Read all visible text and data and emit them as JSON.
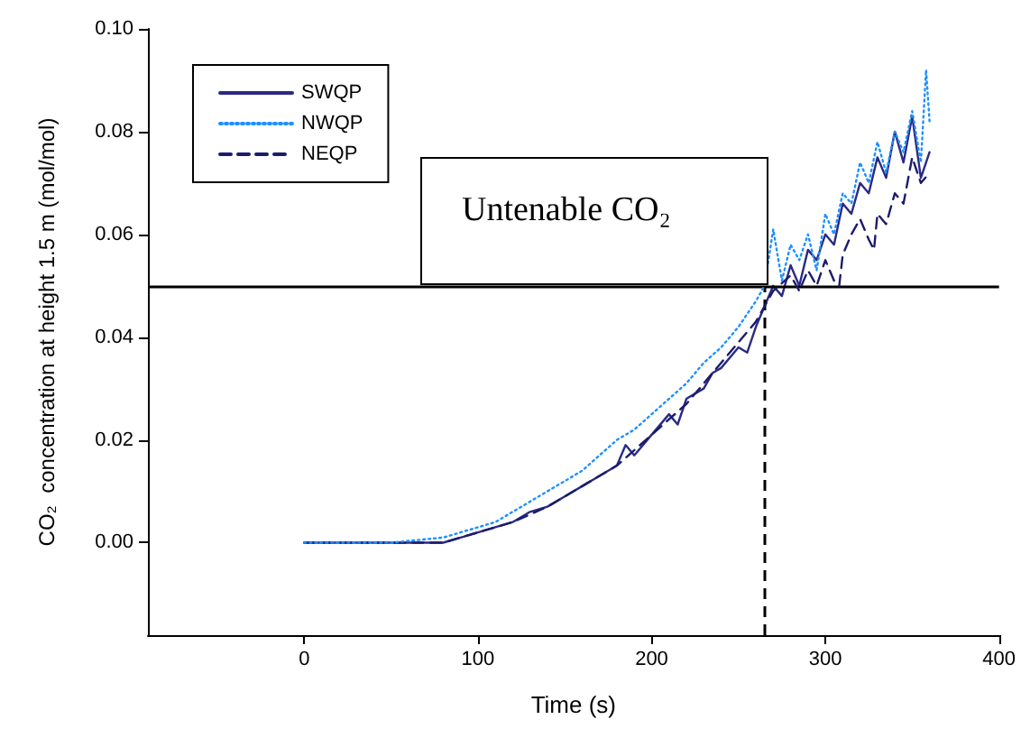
{
  "chart_data": {
    "type": "line",
    "xlabel": "Time (s)",
    "ylabel": "CO₂  concentration at height 1.5 m (mol/mol)",
    "annotations": [
      "Untenable CO₂"
    ],
    "xlim": [
      -90,
      400
    ],
    "xticks": [
      0,
      100,
      200,
      300,
      400
    ],
    "ylim": [
      -0.018,
      0.1
    ],
    "yticks": [
      {
        "value": 0,
        "label": "0.00"
      },
      {
        "value": 0.02,
        "label": "0.02"
      },
      {
        "value": 0.04,
        "label": "0.04"
      },
      {
        "value": 0.06,
        "label": "0.06"
      },
      {
        "value": 0.08,
        "label": "0.08"
      },
      {
        "value": 0.1,
        "label": "0.10"
      }
    ],
    "grid": false,
    "legend": "top left",
    "marker": "none",
    "ref_lines": [
      {
        "axis": "y",
        "value": 0.05,
        "label": null,
        "color": "#000000",
        "line_style": "solid"
      },
      {
        "axis": "x",
        "value": 265,
        "label": null,
        "color": "#000000",
        "line_style": "dashed"
      }
    ],
    "series": [
      {
        "name": "SWQP",
        "color": "#2a2a85",
        "line_style": "solid",
        "x": [
          0,
          40,
          80,
          90,
          100,
          110,
          120,
          130,
          140,
          150,
          160,
          170,
          180,
          185,
          190,
          200,
          210,
          215,
          220,
          230,
          235,
          240,
          250,
          255,
          260,
          265,
          270,
          275,
          280,
          285,
          290,
          295,
          300,
          305,
          310,
          315,
          320,
          325,
          330,
          335,
          340,
          345,
          350,
          355,
          360
        ],
        "values": [
          0,
          0,
          0,
          0.001,
          0.002,
          0.003,
          0.004,
          0.006,
          0.007,
          0.009,
          0.011,
          0.013,
          0.015,
          0.019,
          0.017,
          0.021,
          0.025,
          0.023,
          0.028,
          0.03,
          0.033,
          0.034,
          0.038,
          0.037,
          0.042,
          0.046,
          0.05,
          0.048,
          0.054,
          0.05,
          0.057,
          0.055,
          0.06,
          0.058,
          0.066,
          0.064,
          0.07,
          0.068,
          0.075,
          0.071,
          0.08,
          0.074,
          0.083,
          0.071,
          0.076
        ]
      },
      {
        "name": "NWQP",
        "color": "#1e90ff",
        "line_style": "dotted",
        "x": [
          0,
          50,
          80,
          100,
          110,
          120,
          130,
          140,
          150,
          160,
          170,
          180,
          190,
          200,
          210,
          220,
          230,
          240,
          250,
          260,
          265,
          270,
          275,
          280,
          285,
          290,
          295,
          300,
          305,
          310,
          315,
          320,
          325,
          330,
          335,
          340,
          345,
          350,
          355,
          358,
          360
        ],
        "values": [
          0,
          0,
          0.001,
          0.003,
          0.004,
          0.006,
          0.008,
          0.01,
          0.012,
          0.014,
          0.017,
          0.02,
          0.022,
          0.025,
          0.028,
          0.031,
          0.035,
          0.038,
          0.042,
          0.047,
          0.05,
          0.061,
          0.051,
          0.058,
          0.055,
          0.06,
          0.053,
          0.064,
          0.06,
          0.068,
          0.066,
          0.074,
          0.07,
          0.078,
          0.072,
          0.08,
          0.076,
          0.084,
          0.074,
          0.092,
          0.082
        ]
      },
      {
        "name": "NEQP",
        "color": "#1c1c6b",
        "line_style": "dashed",
        "x": [
          0,
          40,
          80,
          90,
          100,
          120,
          140,
          160,
          180,
          200,
          220,
          240,
          260,
          265,
          270,
          280,
          285,
          290,
          295,
          300,
          305,
          308,
          310,
          315,
          320,
          325,
          328,
          330,
          335,
          340,
          345,
          350,
          355,
          360
        ],
        "values": [
          0,
          0,
          0,
          0.001,
          0.002,
          0.004,
          0.007,
          0.011,
          0.015,
          0.021,
          0.027,
          0.035,
          0.043,
          0.046,
          0.049,
          0.052,
          0.049,
          0.053,
          0.05,
          0.055,
          0.051,
          0.05,
          0.056,
          0.06,
          0.063,
          0.059,
          0.057,
          0.064,
          0.062,
          0.068,
          0.066,
          0.075,
          0.07,
          0.072
        ]
      }
    ]
  }
}
